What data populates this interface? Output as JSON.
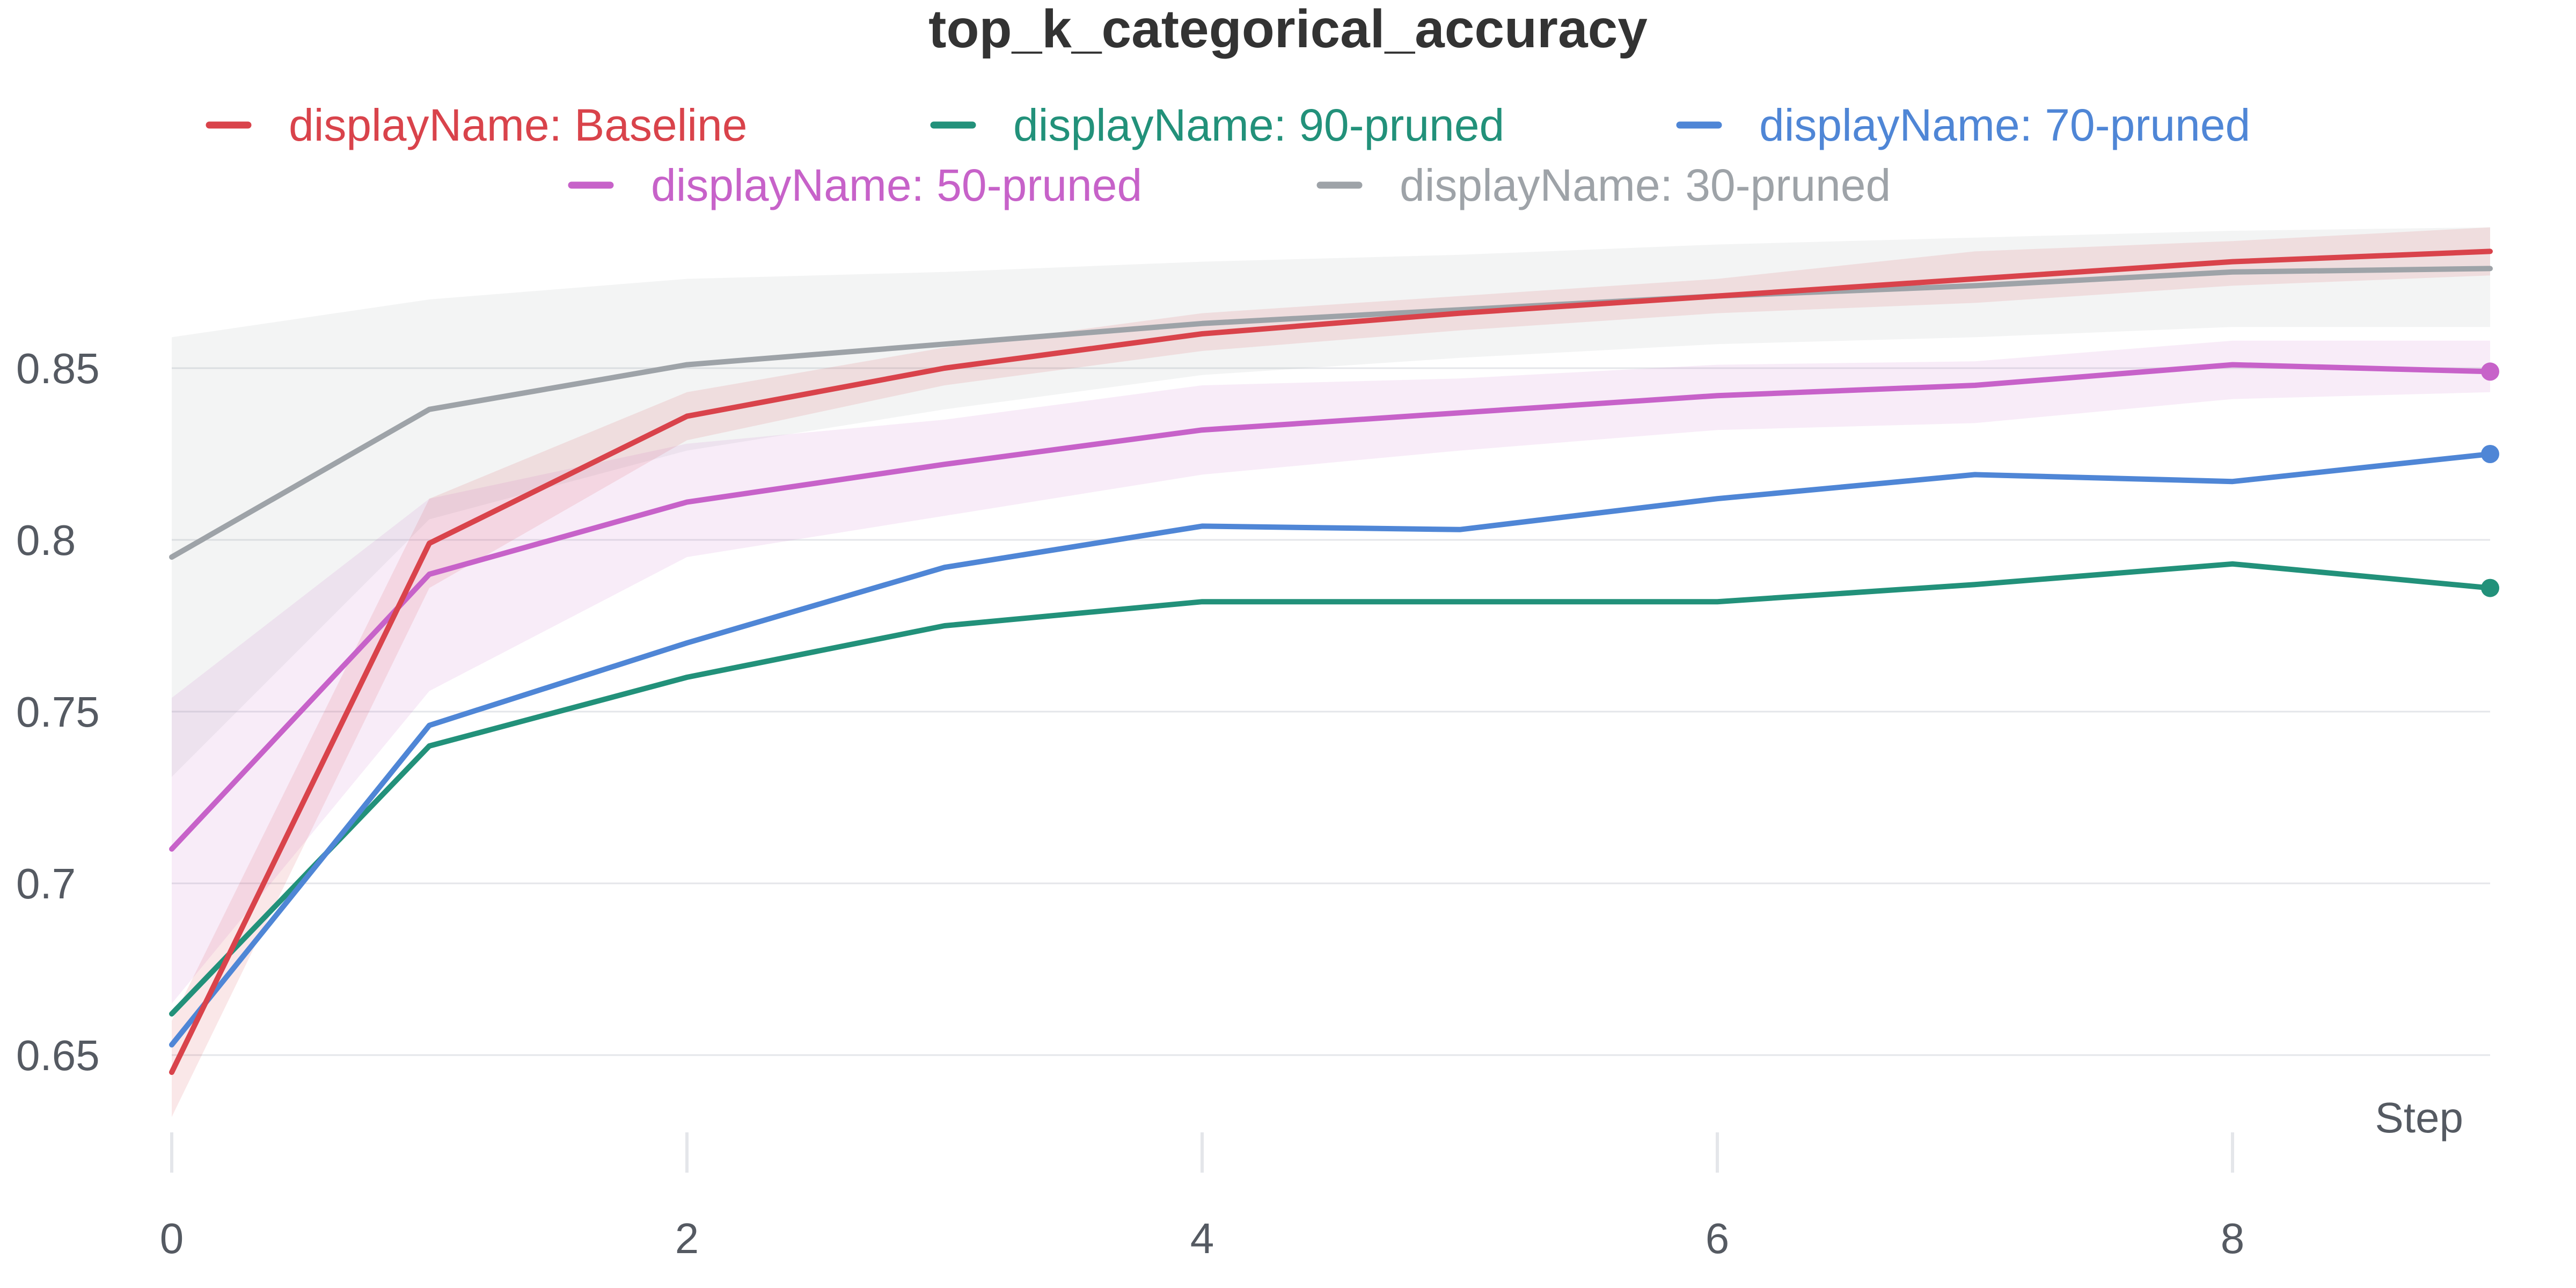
{
  "chart_data": {
    "type": "line",
    "title": "top_k_categorical_accuracy",
    "xlabel": "Step",
    "ylabel": "",
    "xlim": [
      0,
      9
    ],
    "ylim": [
      0.635,
      0.89
    ],
    "x_ticks": [
      0,
      2,
      4,
      6,
      8
    ],
    "y_ticks": [
      0.65,
      0.7,
      0.75,
      0.8,
      0.85
    ],
    "y_tick_labels": [
      "0.65",
      "0.7",
      "0.75",
      "0.8",
      "0.85"
    ],
    "x_tick_labels": [
      "0",
      "2",
      "4",
      "6",
      "8"
    ],
    "grid": "horizontal",
    "legend_position": "top",
    "series": [
      {
        "name": "displayName: Baseline",
        "color": "#d9434b",
        "x": [
          0,
          1,
          2,
          3,
          4,
          5,
          6,
          7,
          8,
          9
        ],
        "values": [
          0.645,
          0.799,
          0.836,
          0.85,
          0.86,
          0.866,
          0.871,
          0.876,
          0.881,
          0.884
        ],
        "band_low": [
          0.632,
          0.786,
          0.829,
          0.845,
          0.855,
          0.861,
          0.866,
          0.869,
          0.874,
          0.877
        ],
        "band_high": [
          0.66,
          0.812,
          0.843,
          0.856,
          0.866,
          0.871,
          0.876,
          0.884,
          0.887,
          0.891
        ],
        "end_marker": false
      },
      {
        "name": "displayName: 90-pruned",
        "color": "#22917a",
        "x": [
          0,
          1,
          2,
          3,
          4,
          5,
          6,
          7,
          8,
          9
        ],
        "values": [
          0.662,
          0.74,
          0.76,
          0.775,
          0.782,
          0.782,
          0.782,
          0.787,
          0.793,
          0.786
        ],
        "end_marker": true
      },
      {
        "name": "displayName: 70-pruned",
        "color": "#4f86d6",
        "x": [
          0,
          1,
          2,
          3,
          4,
          5,
          6,
          7,
          8,
          9
        ],
        "values": [
          0.653,
          0.746,
          0.77,
          0.792,
          0.804,
          0.803,
          0.812,
          0.819,
          0.817,
          0.825
        ],
        "end_marker": true
      },
      {
        "name": "displayName: 50-pruned",
        "color": "#c762c9",
        "x": [
          0,
          1,
          2,
          3,
          4,
          5,
          6,
          7,
          8,
          9
        ],
        "values": [
          0.71,
          0.79,
          0.811,
          0.822,
          0.832,
          0.837,
          0.842,
          0.845,
          0.851,
          0.849
        ],
        "band_low": [
          0.665,
          0.756,
          0.795,
          0.807,
          0.819,
          0.826,
          0.832,
          0.834,
          0.841,
          0.843
        ],
        "band_high": [
          0.754,
          0.812,
          0.828,
          0.835,
          0.845,
          0.847,
          0.851,
          0.852,
          0.858,
          0.858
        ],
        "end_marker": true
      },
      {
        "name": "displayName: 30-pruned",
        "color": "#9ea3a8",
        "x": [
          0,
          1,
          2,
          3,
          4,
          5,
          6,
          7,
          8,
          9
        ],
        "values": [
          0.795,
          0.838,
          0.851,
          0.857,
          0.863,
          0.867,
          0.871,
          0.874,
          0.878,
          0.879
        ],
        "band_low": [
          0.731,
          0.806,
          0.826,
          0.838,
          0.848,
          0.853,
          0.857,
          0.859,
          0.862,
          0.862
        ],
        "band_high": [
          0.859,
          0.87,
          0.876,
          0.878,
          0.881,
          0.883,
          0.886,
          0.888,
          0.89,
          0.891
        ],
        "end_marker": false
      }
    ]
  }
}
